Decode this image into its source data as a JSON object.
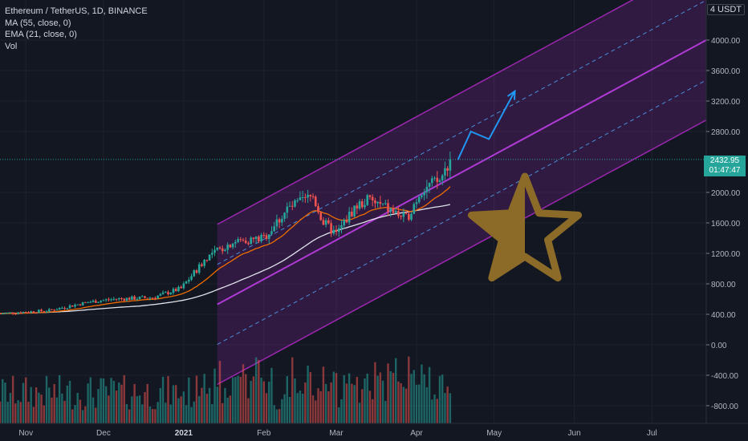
{
  "legend": {
    "symbol": "Ethereum / TetherUS, 1D, BINANCE",
    "ma": "MA (55, close, 0)",
    "ema": "EMA (21, close, 0)",
    "vol": "Vol"
  },
  "price_axis": {
    "unit": "4 USDT",
    "last_price": "2432.95",
    "countdown": "01:47:47",
    "ticks": [
      "4000.00",
      "3600.00",
      "3200.00",
      "2800.00",
      "2000.00",
      "1600.00",
      "1200.00",
      "800.00",
      "400.00",
      "0.00",
      "-400.00",
      "-800.00"
    ]
  },
  "time_axis": {
    "labels": [
      "Nov",
      "Dec",
      "2021",
      "Feb",
      "Mar",
      "Apr",
      "May",
      "Jun",
      "Jul"
    ]
  },
  "colors": {
    "background": "#131722",
    "up": "#26a69a",
    "down": "#ef5350",
    "channel": "#9c27b0",
    "ma": "#ef6c00",
    "ema": "#e0e3eb",
    "arrow": "#2196f3",
    "star": "#8b6b27"
  },
  "chart_data": {
    "type": "candlestick",
    "x_range": [
      "2020-10-22",
      "2021-07-22"
    ],
    "ylim": [
      -950,
      4150
    ],
    "anchors": [
      {
        "date": "2020-10-22",
        "close": 410
      },
      {
        "date": "2020-11-10",
        "close": 450
      },
      {
        "date": "2020-11-25",
        "close": 560
      },
      {
        "date": "2020-12-05",
        "close": 600
      },
      {
        "date": "2020-12-20",
        "close": 620
      },
      {
        "date": "2020-12-31",
        "close": 740
      },
      {
        "date": "2021-01-10",
        "close": 1150
      },
      {
        "date": "2021-01-20",
        "close": 1350
      },
      {
        "date": "2021-02-01",
        "close": 1400
      },
      {
        "date": "2021-02-10",
        "close": 1780
      },
      {
        "date": "2021-02-20",
        "close": 1950
      },
      {
        "date": "2021-02-24",
        "close": 1600
      },
      {
        "date": "2021-03-01",
        "close": 1450
      },
      {
        "date": "2021-03-08",
        "close": 1800
      },
      {
        "date": "2021-03-13",
        "close": 1900
      },
      {
        "date": "2021-03-20",
        "close": 1800
      },
      {
        "date": "2021-03-28",
        "close": 1650
      },
      {
        "date": "2021-04-03",
        "close": 2050
      },
      {
        "date": "2021-04-10",
        "close": 2150
      },
      {
        "date": "2021-04-14",
        "close": 2432.95
      }
    ],
    "channel": {
      "start_date": "2021-01-14",
      "end_date": "2021-07-22",
      "center_start": 530,
      "center_end": 4000,
      "outer_offset": 1050,
      "dashed_offset": 525
    },
    "projection": [
      {
        "date": "2021-04-17",
        "price": 2430
      },
      {
        "date": "2021-04-22",
        "price": 2800
      },
      {
        "date": "2021-04-29",
        "price": 2700
      },
      {
        "date": "2021-05-09",
        "price": 3330
      }
    ],
    "volume_scale_max": 400
  }
}
